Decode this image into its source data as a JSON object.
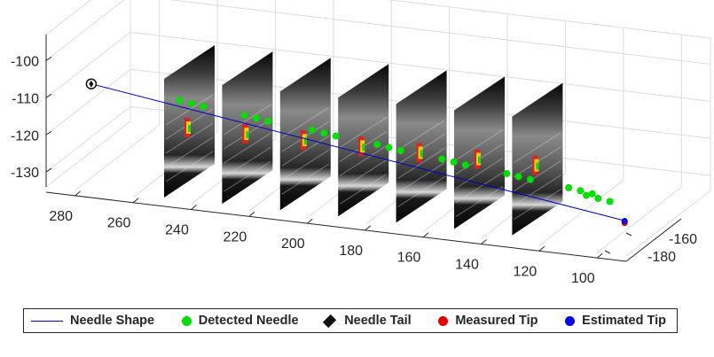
{
  "chart_data": {
    "type": "3d-line-scatter",
    "x_axis": {
      "ticks": [
        "280",
        "260",
        "240",
        "220",
        "200",
        "180",
        "160",
        "140",
        "120",
        "100"
      ],
      "range": [
        290,
        90
      ]
    },
    "y_axis": {
      "ticks": [
        "-160",
        "-180"
      ]
    },
    "z_axis": {
      "ticks": [
        "-100",
        "-110",
        "-120",
        "-130"
      ],
      "range": [
        -134,
        -93
      ]
    },
    "grid": true,
    "series": [
      {
        "name": "Needle Shape",
        "kind": "line",
        "color": "#0000cc",
        "x": [
          283,
          102
        ],
        "z": [
          -110.4,
          -133.5
        ]
      },
      {
        "name": "Detected Needle",
        "kind": "scatter",
        "color": "#00dd00",
        "x": [
          253,
          249,
          245,
          231,
          227,
          223,
          208,
          204,
          200,
          186,
          182,
          178,
          164,
          160,
          156,
          142,
          138,
          134,
          121,
          117,
          113,
          115,
          111,
          107
        ],
        "z": [
          -112.5,
          -113.0,
          -113.5,
          -114.8,
          -115.3,
          -115.8,
          -117.0,
          -117.5,
          -118.0,
          -119.2,
          -119.7,
          -120.2,
          -121.4,
          -121.9,
          -122.4,
          -123.6,
          -124.1,
          -124.6,
          -125.8,
          -126.3,
          -126.8,
          -127.4,
          -127.9,
          -128.4
        ]
      },
      {
        "name": "Needle Tail",
        "kind": "marker",
        "color": "#111111",
        "x": [
          283
        ],
        "z": [
          -110.4
        ]
      },
      {
        "name": "Measured Tip",
        "kind": "marker",
        "color": "#e00000",
        "x": [
          102
        ],
        "z": [
          -133.8
        ]
      },
      {
        "name": "Estimated Tip",
        "kind": "marker",
        "color": "#0000ee",
        "x": [
          102
        ],
        "z": [
          -133.3
        ]
      }
    ],
    "legend": {
      "placement": "bottom",
      "entries": [
        "Needle Shape",
        "Detected Needle",
        "Needle Tail",
        "Measured Tip",
        "Estimated Tip"
      ]
    },
    "image_slices": 7
  }
}
